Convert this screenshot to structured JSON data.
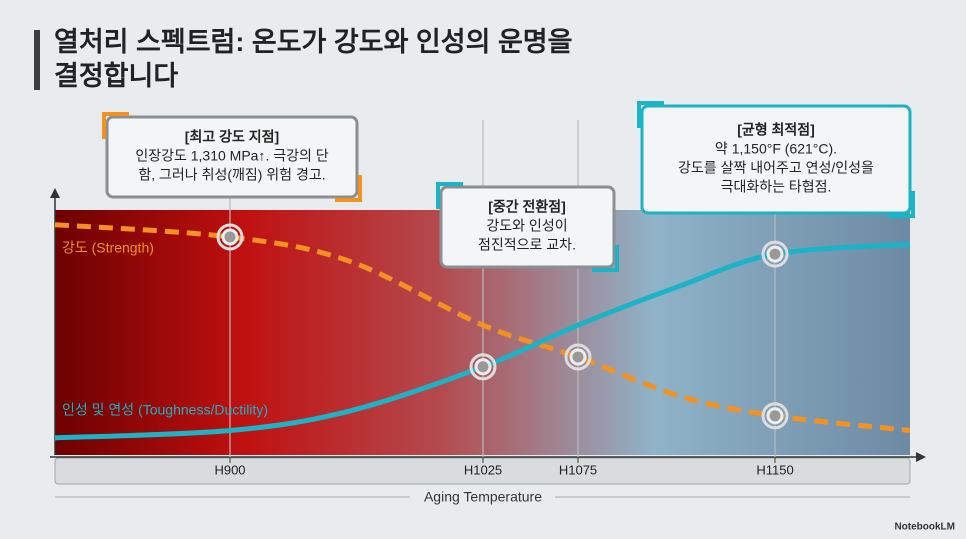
{
  "chart_data": {
    "type": "line",
    "title_lines": [
      "열처리 스펙트럼: 온도가 강도와 인성의 운명을",
      "결정합니다"
    ],
    "categories": [
      null,
      "H900",
      null,
      "H1025",
      "H1075",
      null,
      "H1150",
      null
    ],
    "x_label": "Aging Temperature",
    "ylim": [
      0,
      100
    ],
    "series": [
      {
        "name": "강도 (Strength)",
        "color": "#f39221",
        "values": [
          94,
          89,
          79,
          53,
          40,
          24,
          16,
          10
        ]
      },
      {
        "name": "인성 및 연성 (Toughness/Ductility)",
        "color": "#1bb3c6",
        "values": [
          7,
          10,
          18,
          36,
          53,
          69,
          82,
          86
        ]
      }
    ],
    "callouts": [
      {
        "lines": [
          "[최고 강도 지점]",
          "인장강도 1,310 MPa↑. 극강의 단",
          "함, 그러나 취성(깨짐) 위험 경고."
        ]
      },
      {
        "lines": [
          "[중간 전환점]",
          "강도와 인성이",
          "점진적으로 교차."
        ]
      },
      {
        "lines": [
          "[균형 최적점]",
          "약 1,150°F (621°C).",
          "강도를 살짝 내어주고 연성/인성을",
          "극대화하는 타협점."
        ]
      }
    ],
    "watermark": "NotebookLM"
  }
}
